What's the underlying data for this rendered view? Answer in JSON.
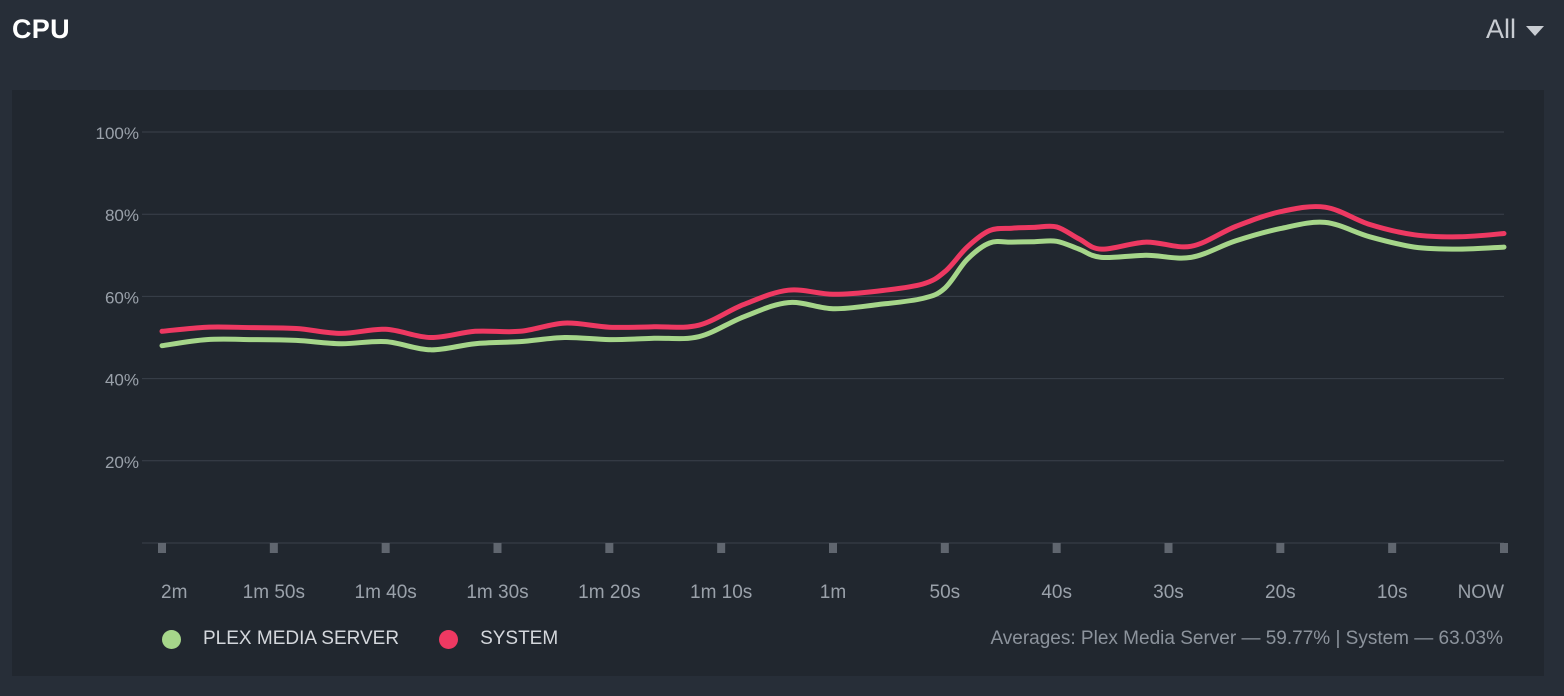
{
  "header": {
    "title": "CPU",
    "range_label": "All"
  },
  "colors": {
    "plex": "#a6d68a",
    "system": "#ee3962",
    "grid": "#3a414b",
    "axis_text": "#9aa1aa"
  },
  "chart_data": {
    "type": "line",
    "x": [
      120,
      110,
      100,
      90,
      80,
      70,
      60,
      50,
      40,
      30,
      20,
      10,
      0
    ],
    "xtick_labels": [
      "2m",
      "1m 50s",
      "1m 40s",
      "1m 30s",
      "1m 20s",
      "1m 10s",
      "1m",
      "50s",
      "40s",
      "30s",
      "20s",
      "10s",
      "NOW"
    ],
    "ytick_labels": [
      "100%",
      "80%",
      "60%",
      "40%",
      "20%"
    ],
    "yticks": [
      100,
      80,
      60,
      40,
      20
    ],
    "ylim": [
      0,
      100
    ],
    "grid": true,
    "legend_position": "bottom-left",
    "series": [
      {
        "name": "PLEX MEDIA SERVER",
        "color": "#a6d68a",
        "x": [
          120,
          116,
          112,
          108,
          104,
          100,
          96,
          92,
          88,
          84,
          80,
          76,
          72,
          68,
          64,
          60,
          56,
          52,
          50,
          48,
          46,
          44,
          42,
          40,
          38,
          36,
          32,
          28,
          24,
          20,
          16,
          12,
          8,
          4,
          0
        ],
        "values": [
          48,
          49.5,
          49.5,
          49.3,
          48.5,
          49,
          47,
          48.5,
          49,
          50,
          49.5,
          49.8,
          50.2,
          55,
          58.5,
          57,
          58,
          59.5,
          62,
          69,
          73,
          73.2,
          73.3,
          73.4,
          71.5,
          69.5,
          70,
          69.5,
          73.5,
          76.5,
          78,
          74.5,
          72,
          71.5,
          72
        ]
      },
      {
        "name": "SYSTEM",
        "color": "#ee3962",
        "x": [
          120,
          116,
          112,
          108,
          104,
          100,
          96,
          92,
          88,
          84,
          80,
          76,
          72,
          68,
          64,
          60,
          56,
          52,
          50,
          48,
          46,
          44,
          42,
          40,
          38,
          36,
          32,
          28,
          24,
          20,
          16,
          12,
          8,
          4,
          0
        ],
        "values": [
          51.5,
          52.5,
          52.4,
          52.2,
          51,
          52,
          50,
          51.5,
          51.5,
          53.5,
          52.5,
          52.6,
          53,
          58,
          61.5,
          60.5,
          61.3,
          63,
          66,
          72,
          76,
          76.6,
          76.8,
          76.9,
          74,
          71.5,
          73.2,
          72.2,
          77,
          80.6,
          81.7,
          77.5,
          75,
          74.5,
          75.3
        ]
      }
    ],
    "averages_text": "Averages: Plex Media Server — 59.77% | System — 63.03%"
  }
}
